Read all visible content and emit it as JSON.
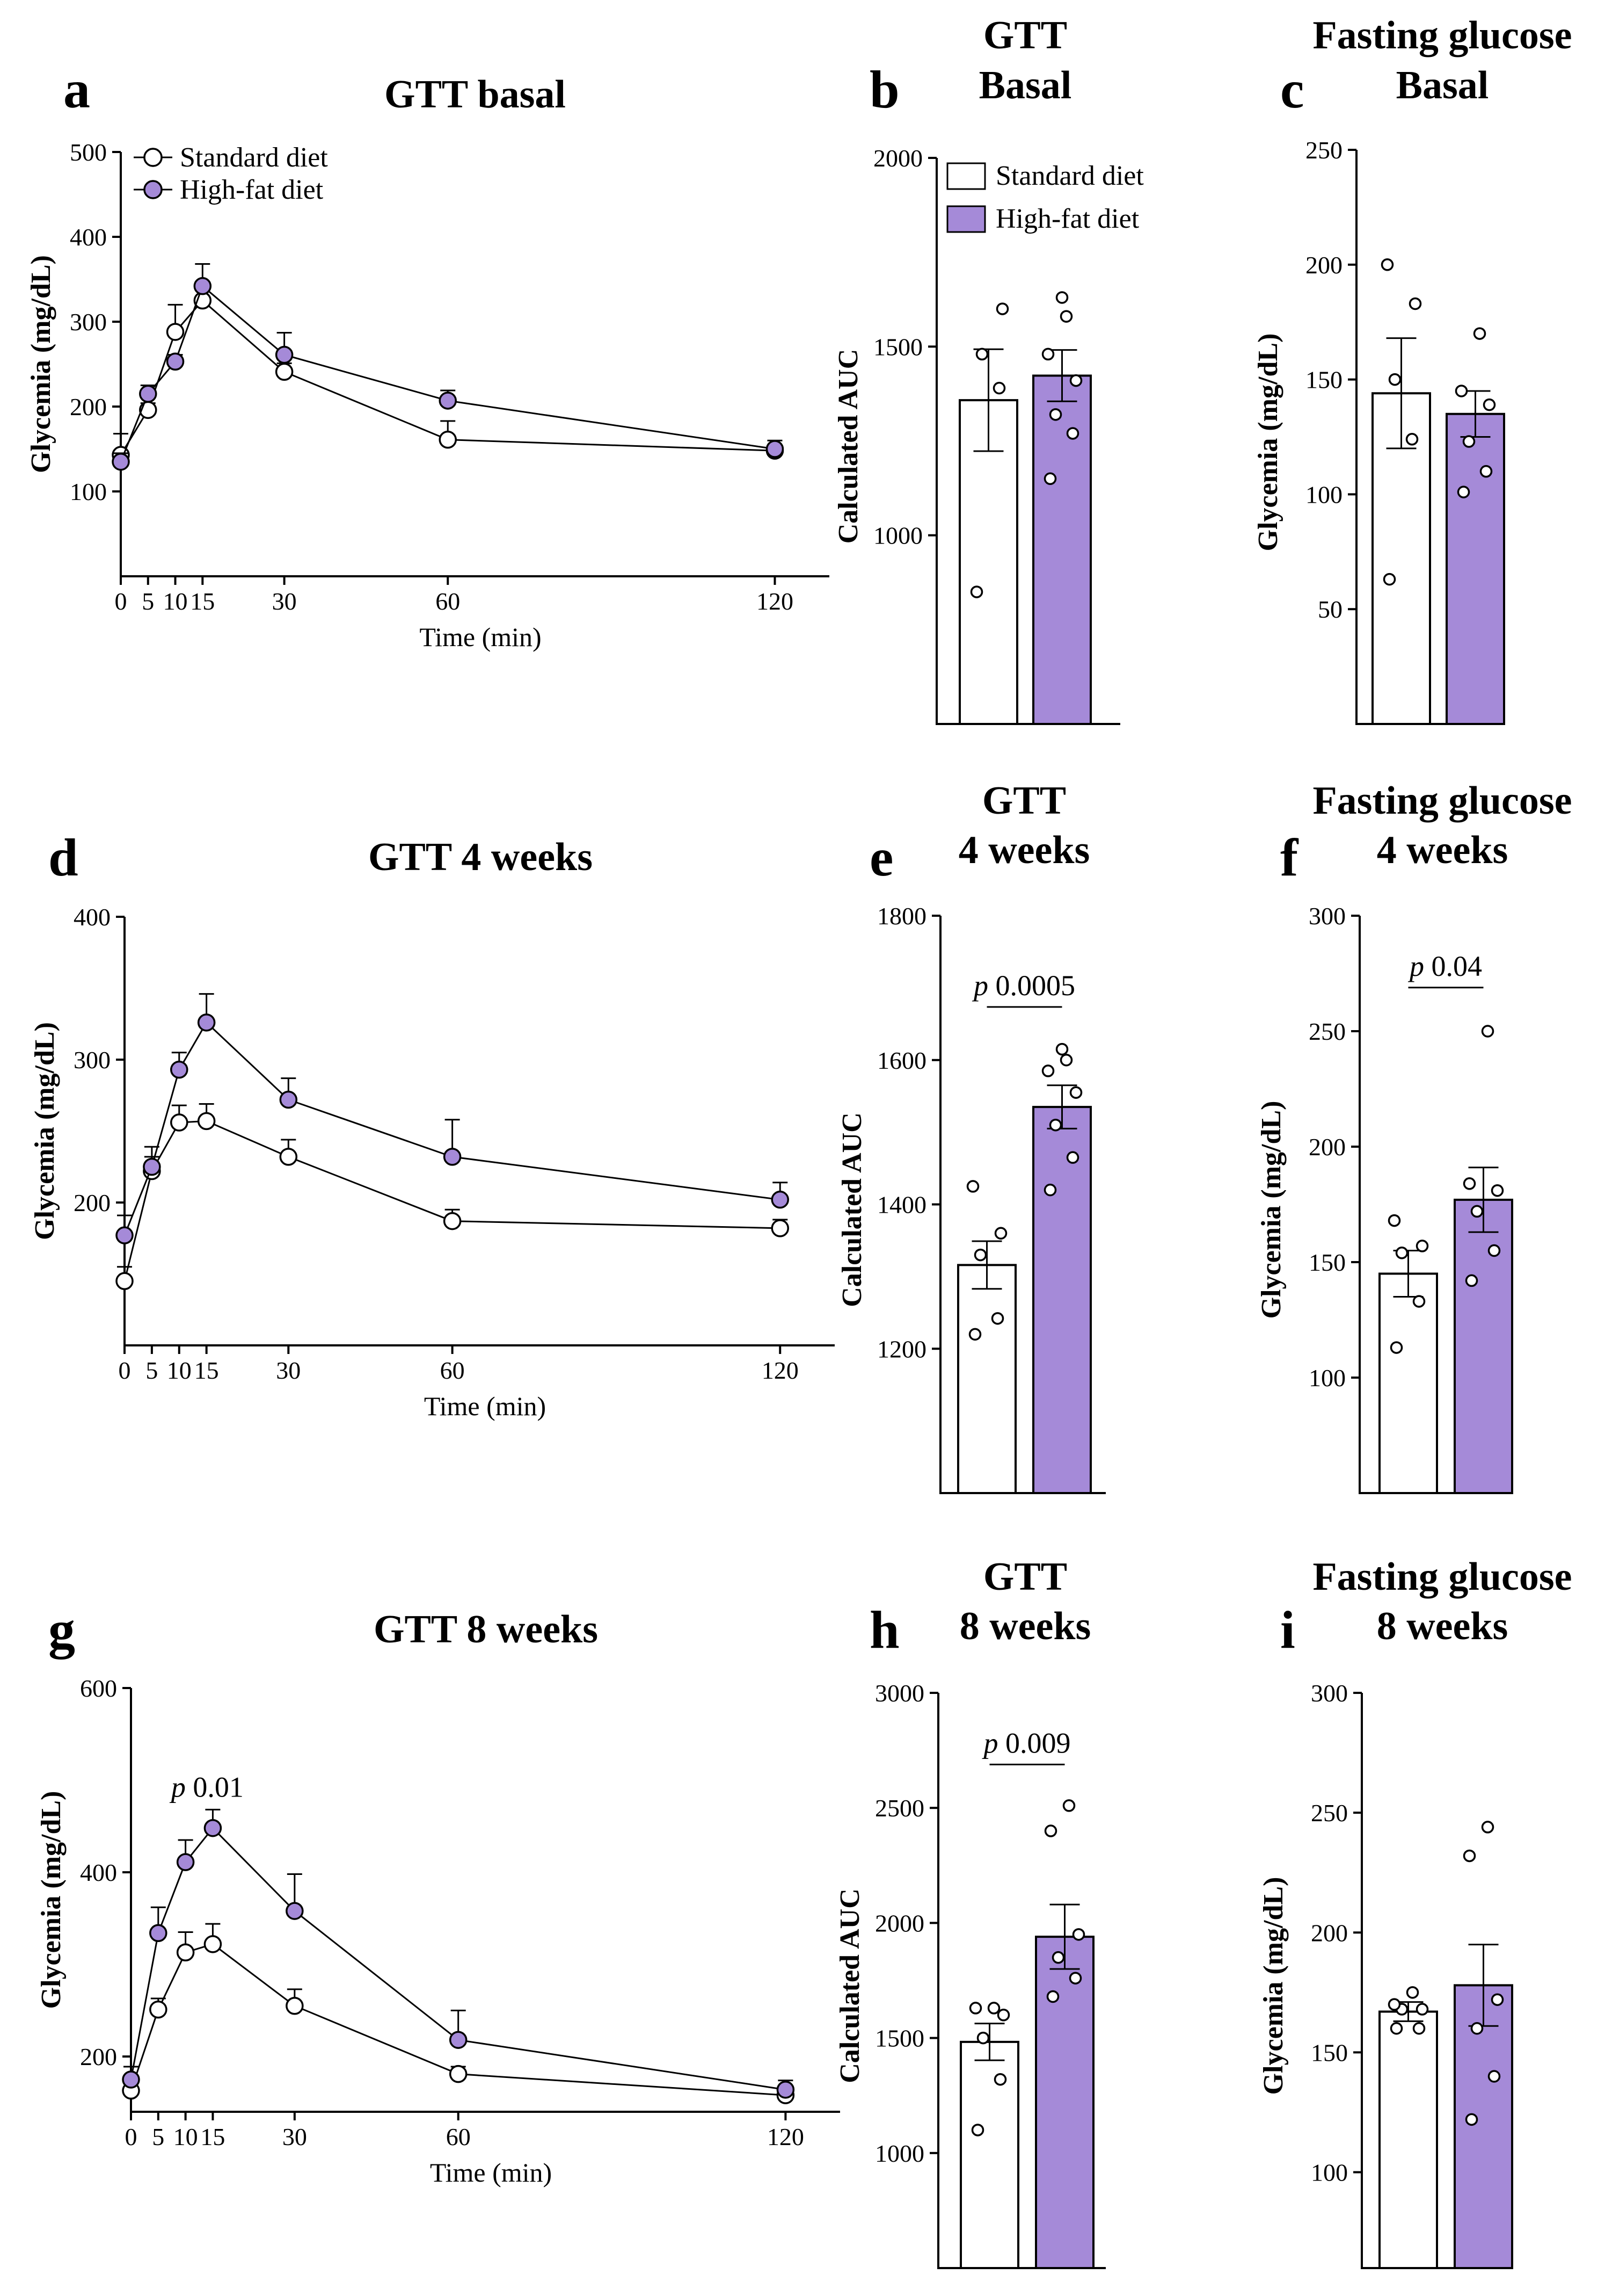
{
  "colors": {
    "standard": "#ffffff",
    "hfd": "#a58ad8",
    "stroke": "#000000"
  },
  "chart_data": [
    {
      "id": "a",
      "type": "line",
      "letter": "a",
      "title": "GTT basal",
      "xlabel": "Time (min)",
      "ylabel": "Glycemia (mg/dL)",
      "xlim": [
        0,
        130
      ],
      "ylim": [
        0,
        500
      ],
      "xticks": [
        0,
        5,
        10,
        15,
        30,
        60,
        120
      ],
      "yticks": [
        100,
        200,
        300,
        400,
        500
      ],
      "legend": [
        "Standard diet",
        "High-fat diet"
      ],
      "series": [
        {
          "name": "Standard diet",
          "x": [
            0,
            5,
            10,
            15,
            30,
            60,
            120
          ],
          "y": [
            143,
            196,
            288,
            325,
            241,
            161,
            148
          ],
          "err": [
            25,
            8,
            32,
            18,
            10,
            22,
            6
          ]
        },
        {
          "name": "High-fat diet",
          "x": [
            0,
            5,
            10,
            15,
            30,
            60,
            120
          ],
          "y": [
            135,
            215,
            253,
            342,
            261,
            207,
            150
          ],
          "err": [
            10,
            10,
            8,
            26,
            26,
            12,
            10
          ]
        }
      ]
    },
    {
      "id": "b",
      "type": "bar",
      "letter": "b",
      "title": [
        "GTT",
        "Basal"
      ],
      "ylabel": "Calculated AUC",
      "ylim": [
        500,
        2000
      ],
      "yticks": [
        1000,
        1500,
        2000
      ],
      "categories": [
        "Standard diet",
        "High-fat diet"
      ],
      "legend": [
        "Standard diet",
        "High-fat diet"
      ],
      "values": [
        1358,
        1423
      ],
      "err": [
        135,
        68
      ],
      "points": [
        [
          850,
          1390,
          1480,
          1600
        ],
        [
          1150,
          1270,
          1320,
          1410,
          1480,
          1580,
          1630
        ]
      ]
    },
    {
      "id": "c",
      "type": "bar",
      "letter": "c",
      "title": [
        "Fasting glucose",
        "Basal"
      ],
      "ylabel": "Glycemia (mg/dL)",
      "ylim": [
        0,
        250
      ],
      "yticks": [
        50,
        100,
        150,
        200,
        250
      ],
      "categories": [
        "Standard diet",
        "High-fat diet"
      ],
      "values": [
        144,
        135
      ],
      "err": [
        24,
        10
      ],
      "points": [
        [
          63,
          124,
          150,
          183,
          200
        ],
        [
          101,
          110,
          123,
          139,
          145,
          170
        ]
      ]
    },
    {
      "id": "d",
      "type": "line",
      "letter": "d",
      "title": "GTT 4 weeks",
      "xlabel": "Time (min)",
      "ylabel": "Glycemia (mg/dL)",
      "xlim": [
        0,
        130
      ],
      "ylim": [
        100,
        400
      ],
      "xticks": [
        0,
        5,
        10,
        15,
        30,
        60,
        120
      ],
      "yticks": [
        200,
        300,
        400
      ],
      "series": [
        {
          "name": "Standard diet",
          "x": [
            0,
            5,
            10,
            15,
            30,
            60,
            120
          ],
          "y": [
            145,
            222,
            256,
            257,
            232,
            187,
            182
          ],
          "err": [
            10,
            10,
            12,
            12,
            12,
            8,
            6
          ]
        },
        {
          "name": "High-fat diet",
          "x": [
            0,
            5,
            10,
            15,
            30,
            60,
            120
          ],
          "y": [
            177,
            225,
            293,
            326,
            272,
            232,
            202
          ],
          "err": [
            14,
            14,
            12,
            20,
            15,
            26,
            12
          ]
        }
      ]
    },
    {
      "id": "e",
      "type": "bar",
      "letter": "e",
      "title": [
        "GTT",
        "4 weeks"
      ],
      "ylabel": "Calculated AUC",
      "ylim": [
        1000,
        1800
      ],
      "yticks": [
        1200,
        1400,
        1600,
        1800
      ],
      "categories": [
        "Standard diet",
        "High-fat diet"
      ],
      "values": [
        1316,
        1535
      ],
      "err": [
        33,
        30
      ],
      "points": [
        [
          1220,
          1242,
          1330,
          1360,
          1425
        ],
        [
          1420,
          1465,
          1510,
          1555,
          1585,
          1600,
          1615
        ]
      ],
      "annotation": {
        "italic": "p",
        "text": " 0.0005",
        "y": 1690
      }
    },
    {
      "id": "f",
      "type": "bar",
      "letter": "f",
      "title": [
        "Fasting glucose",
        "4 weeks"
      ],
      "ylabel": "Glycemia (mg/dL)",
      "ylim": [
        50,
        300
      ],
      "yticks": [
        100,
        150,
        200,
        250,
        300
      ],
      "categories": [
        "Standard diet",
        "High-fat diet"
      ],
      "values": [
        145,
        177
      ],
      "err": [
        10,
        14
      ],
      "points": [
        [
          113,
          133,
          154,
          157,
          168
        ],
        [
          142,
          155,
          172,
          181,
          184,
          250
        ]
      ],
      "annotation": {
        "italic": "p",
        "text": " 0.04",
        "y": 274
      }
    },
    {
      "id": "g",
      "type": "line",
      "letter": "g",
      "title": "GTT 8 weeks",
      "xlabel": "Time (min)",
      "ylabel": "Glycemia (mg/dL)",
      "xlim": [
        0,
        130
      ],
      "ylim": [
        140,
        600
      ],
      "xticks": [
        0,
        5,
        10,
        15,
        30,
        60,
        120
      ],
      "yticks": [
        200,
        400,
        600
      ],
      "series": [
        {
          "name": "Standard diet",
          "x": [
            0,
            5,
            10,
            15,
            30,
            60,
            120
          ],
          "y": [
            163,
            251,
            313,
            322,
            255,
            181,
            158
          ],
          "err": [
            12,
            12,
            22,
            22,
            18,
            8,
            6
          ]
        },
        {
          "name": "High-fat diet",
          "x": [
            0,
            5,
            10,
            15,
            30,
            60,
            120
          ],
          "y": [
            175,
            334,
            411,
            448,
            358,
            218,
            164
          ],
          "err": [
            14,
            28,
            24,
            20,
            40,
            32,
            10
          ]
        }
      ],
      "annotation": {
        "italic": "p",
        "text": " 0.01",
        "x": 15,
        "y": 482
      }
    },
    {
      "id": "h",
      "type": "bar",
      "letter": "h",
      "title": [
        "GTT",
        "8 weeks"
      ],
      "ylabel": "Calculated AUC",
      "ylim": [
        500,
        3000
      ],
      "yticks": [
        1000,
        1500,
        2000,
        2500,
        3000
      ],
      "categories": [
        "Standard diet",
        "High-fat diet"
      ],
      "values": [
        1483,
        1940
      ],
      "err": [
        80,
        140
      ],
      "points": [
        [
          1100,
          1320,
          1500,
          1600,
          1630,
          1630
        ],
        [
          1680,
          1760,
          1850,
          1950,
          2400,
          2510
        ]
      ],
      "annotation": {
        "italic": "p",
        "text": " 0.009",
        "y": 2740
      }
    },
    {
      "id": "i",
      "type": "bar",
      "letter": "i",
      "title": [
        "Fasting glucose",
        "8 weeks"
      ],
      "ylabel": "Glycemia (mg/dL)",
      "ylim": [
        60,
        300
      ],
      "yticks": [
        100,
        150,
        200,
        250,
        300
      ],
      "categories": [
        "Standard diet",
        "High-fat diet"
      ],
      "values": [
        167,
        178
      ],
      "err": [
        4,
        17
      ],
      "points": [
        [
          160,
          160,
          168,
          168,
          170,
          175
        ],
        [
          122,
          140,
          160,
          172,
          232,
          244
        ]
      ]
    }
  ]
}
